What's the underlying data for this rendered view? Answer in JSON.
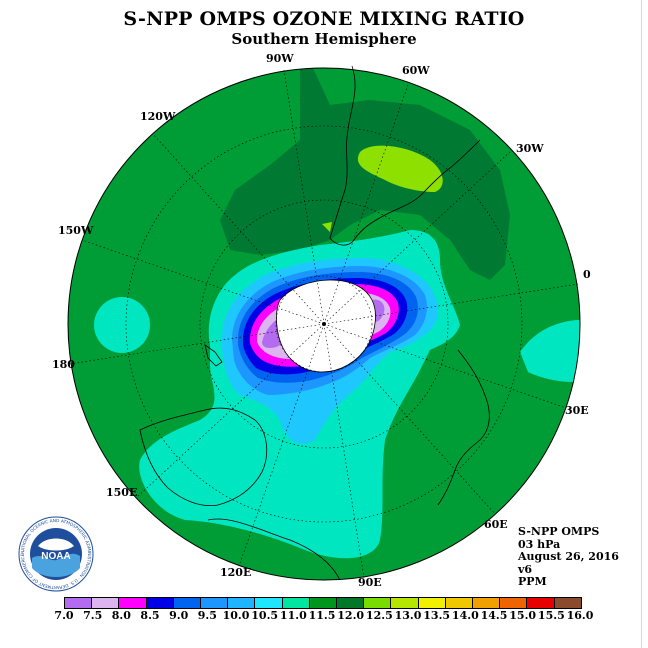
{
  "title": "S-NPP OMPS OZONE MIXING RATIO",
  "subtitle": "Southern Hemisphere",
  "longitude_labels": {
    "w90": "90W",
    "w60": "60W",
    "w30": "30W",
    "w120": "120W",
    "w150": "150W",
    "e0": "0",
    "e180": "180",
    "e30": "30E",
    "e150": "150E",
    "e60": "60E",
    "e120": "120E",
    "e90": "90E"
  },
  "info": {
    "instrument": "S-NPP OMPS",
    "level": "03 hPa",
    "date": "August 26, 2016",
    "version": "v6",
    "units": "PPM"
  },
  "colorbar": {
    "ticks": [
      "7.0",
      "7.5",
      "8.0",
      "8.5",
      "9.0",
      "9.5",
      "10.0",
      "10.5",
      "11.0",
      "11.5",
      "12.0",
      "12.5",
      "13.0",
      "13.5",
      "14.0",
      "14.5",
      "15.0",
      "15.5",
      "16.0"
    ],
    "colors": [
      "#b36bf0",
      "#dcb4f0",
      "#ff00ff",
      "#0000e6",
      "#0064f0",
      "#1e96ff",
      "#1eb4ff",
      "#1ee6ff",
      "#00e6a0",
      "#00961e",
      "#007828",
      "#78dc00",
      "#b4e600",
      "#f0f000",
      "#f0c800",
      "#f0a000",
      "#f06400",
      "#e60000",
      "#8b4a2b"
    ]
  },
  "map_colors": {
    "background_green": "#009c36",
    "dark_green": "#007a33",
    "light_green": "#8ee000",
    "aquamarine": "#00e6c0",
    "light_blue": "#1ec8ff",
    "mid_blue": "#1e96ff",
    "blue": "#0064f0",
    "dark_blue": "#0000e6",
    "magenta": "#ff00ff",
    "light_purple": "#dcb4f0",
    "purple": "#b36bf0",
    "polar_white": "#ffffff"
  },
  "logo": {
    "text": "NOAA",
    "ring_text": "NATIONAL OCEANIC AND ATMOSPHERIC ADMINISTRATION · U.S. DEPARTMENT OF COMMERCE"
  }
}
